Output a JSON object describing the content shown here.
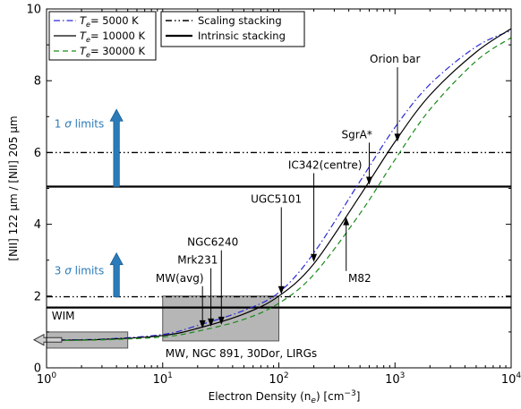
{
  "chart_data": {
    "type": "line",
    "xlabel": "Electron Density (n",
    "xlabel_sub": "e",
    "xlabel_tail": ") [cm",
    "xlabel_sup": "−3",
    "xlabel_end": "]",
    "ylabel": "[NII] 122 μm / [NII] 205 μm",
    "xscale": "log",
    "xlim": [
      1,
      10000
    ],
    "ylim": [
      0,
      10
    ],
    "grid": false,
    "x_ticks": [
      {
        "value": 1,
        "base": "10",
        "exp": "0"
      },
      {
        "value": 10,
        "base": "10",
        "exp": "1"
      },
      {
        "value": 100,
        "base": "10",
        "exp": "2"
      },
      {
        "value": 1000,
        "base": "10",
        "exp": "3"
      },
      {
        "value": 10000,
        "base": "10",
        "exp": "4"
      }
    ],
    "y_ticks": [
      "0",
      "2",
      "4",
      "6",
      "8",
      "10"
    ],
    "legend_left": {
      "position": "top-left",
      "entries": [
        {
          "prefix": "T",
          "sub": "e",
          "suffix": "= 5000 K",
          "color": "#2a2ad6",
          "dash": "dashdot"
        },
        {
          "prefix": "T",
          "sub": "e",
          "suffix": "= 10000 K",
          "color": "#000000",
          "dash": "solid"
        },
        {
          "prefix": "T",
          "sub": "e",
          "suffix": "= 30000 K",
          "color": "#1a8a1a",
          "dash": "dashed"
        }
      ]
    },
    "legend_right": {
      "position": "top-center",
      "entries": [
        {
          "label": "Scaling stacking",
          "style": "dashdotdot"
        },
        {
          "label": "Intrinsic stacking",
          "style": "thick-solid"
        }
      ]
    },
    "series": [
      {
        "name": "Te= 5000 K",
        "color": "#2a2ad6",
        "dash": "dashdot",
        "x": [
          1,
          3,
          10,
          20,
          50,
          100,
          200,
          500,
          1000,
          2000,
          5000,
          10000
        ],
        "y": [
          0.78,
          0.8,
          0.93,
          1.18,
          1.6,
          2.1,
          3.2,
          5.2,
          6.7,
          7.9,
          8.95,
          9.4
        ]
      },
      {
        "name": "Te= 10000 K",
        "color": "#000000",
        "dash": "solid",
        "x": [
          1,
          3,
          10,
          20,
          50,
          100,
          200,
          500,
          1000,
          2000,
          5000,
          10000
        ],
        "y": [
          0.77,
          0.79,
          0.9,
          1.1,
          1.5,
          2.0,
          2.9,
          4.8,
          6.3,
          7.6,
          8.8,
          9.45
        ]
      },
      {
        "name": "Te= 30000 K",
        "color": "#1a8a1a",
        "dash": "dashed",
        "x": [
          1,
          3,
          10,
          20,
          50,
          100,
          200,
          500,
          1000,
          2000,
          5000,
          10000
        ],
        "y": [
          0.76,
          0.78,
          0.86,
          1.02,
          1.35,
          1.8,
          2.6,
          4.3,
          5.8,
          7.2,
          8.55,
          9.2
        ]
      }
    ],
    "hlines": [
      {
        "name": "1 sigma scaling",
        "y": 6.0,
        "style": "dashdotdot"
      },
      {
        "name": "1 sigma intrinsic",
        "y": 5.05,
        "style": "thick-solid"
      },
      {
        "name": "3 sigma scaling",
        "y": 1.98,
        "style": "dashdotdot"
      },
      {
        "name": "3 sigma intrinsic",
        "y": 1.68,
        "style": "thick-solid"
      }
    ],
    "limit_labels": [
      {
        "prefix": "1 ",
        "sigma": "σ",
        "suffix": " limits",
        "x": 1.05,
        "y": 6.7
      },
      {
        "prefix": "3 ",
        "sigma": "σ",
        "suffix": " limits",
        "x": 1.05,
        "y": 2.6
      }
    ],
    "up_arrows": [
      {
        "x": 4,
        "y_from": 5.05,
        "y_to": 7.2,
        "color": "#2b7bba"
      },
      {
        "x": 4,
        "y_from": 1.98,
        "y_to": 3.2,
        "color": "#2b7bba"
      }
    ],
    "boxes": [
      {
        "label": "WIM",
        "x0": 1,
        "x1": 5,
        "y0": 0.55,
        "y1": 1.0,
        "label_x": 1.05,
        "label_y": 1.35
      },
      {
        "label": "MW, NGC 891, 30Dor, LIRGs",
        "x0": 10,
        "x1": 100,
        "y0": 0.75,
        "y1": 2.0,
        "label_x": 10,
        "label_y": 0.3
      }
    ],
    "left_arrow": {
      "x_tip": 0.78,
      "x_tail": 1.35,
      "y": 0.78
    },
    "annotations": [
      {
        "label": "Orion bar",
        "text_x": 1000,
        "text_y": 8.5,
        "tip_x": 1050,
        "tip_y": 6.3
      },
      {
        "label": "SgrA*",
        "text_x": 470,
        "text_y": 6.4,
        "tip_x": 600,
        "tip_y": 5.1
      },
      {
        "label": "IC342(centre)",
        "text_x": 250,
        "text_y": 5.55,
        "tip_x": 200,
        "tip_y": 2.95
      },
      {
        "label": "UGC5101",
        "text_x": 95,
        "text_y": 4.6,
        "tip_x": 105,
        "tip_y": 2.05
      },
      {
        "label": "M82",
        "text_x": 440,
        "text_y": 2.4,
        "tip_x": 380,
        "tip_y": 4.2,
        "pointing_up": true
      },
      {
        "label": "NGC6240",
        "text_x": 27,
        "text_y": 3.4,
        "tip_x": 32,
        "tip_y": 1.2
      },
      {
        "label": "Mrk231",
        "text_x": 20,
        "text_y": 2.9,
        "tip_x": 26,
        "tip_y": 1.15
      },
      {
        "label": "MW(avg)",
        "text_x": 14,
        "text_y": 2.4,
        "tip_x": 22,
        "tip_y": 1.1
      }
    ]
  }
}
